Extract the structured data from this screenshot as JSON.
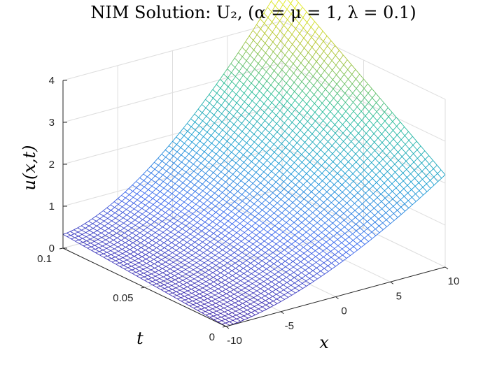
{
  "chart_data": {
    "type": "surface",
    "title": "NIM Solution: U₂, (α = μ = 1,  λ = 0.1)",
    "xlabel": "x",
    "ylabel": "t",
    "zlabel": "u(x,t)",
    "xlim": [
      -10,
      10
    ],
    "ylim": [
      0,
      0.1
    ],
    "zlim": [
      0,
      4
    ],
    "x_ticks": [
      "-10",
      "-5",
      "0",
      "5",
      "10"
    ],
    "y_ticks": [
      "0",
      "0.05",
      "0.1"
    ],
    "z_ticks": [
      "0",
      "1",
      "2",
      "3",
      "4"
    ],
    "colormap": "parula",
    "grid": true,
    "surface": {
      "corners": [
        {
          "x": -10,
          "t": 0.1,
          "u": 0.33
        },
        {
          "x": -10,
          "t": 0,
          "u": 0.0
        },
        {
          "x": 10,
          "t": 0,
          "u": 2.2
        },
        {
          "x": 10,
          "t": 0.1,
          "u": 4.9
        }
      ]
    }
  }
}
